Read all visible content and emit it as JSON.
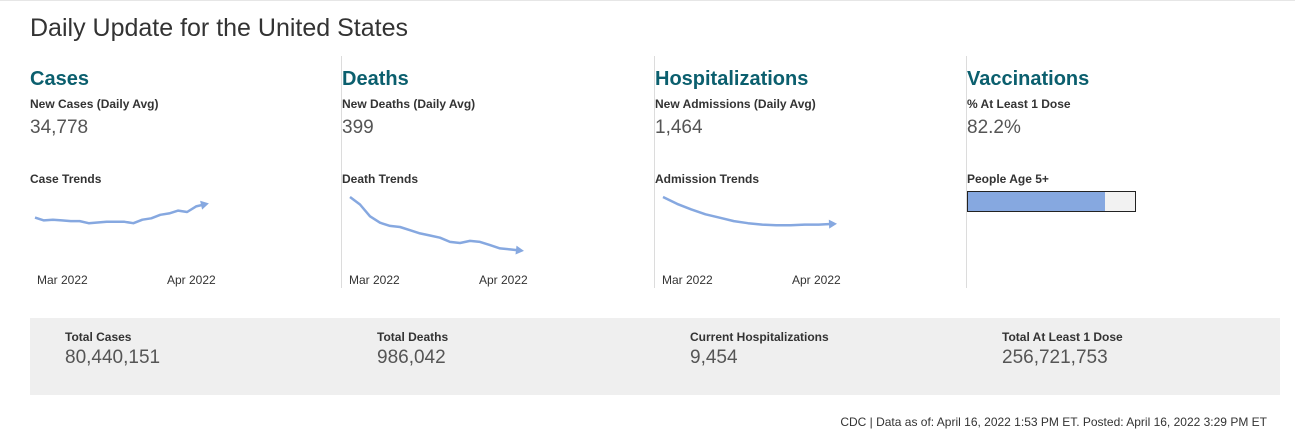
{
  "page_title": "Daily Update for the United States",
  "panels": [
    {
      "title": "Cases",
      "metric_label": "New Cases (Daily Avg)",
      "metric_value": "34,778",
      "trend_label": "Case Trends",
      "axis_start": "Mar 2022",
      "axis_end": "Apr 2022"
    },
    {
      "title": "Deaths",
      "metric_label": "New Deaths (Daily Avg)",
      "metric_value": "399",
      "trend_label": "Death Trends",
      "axis_start": "Mar 2022",
      "axis_end": "Apr 2022"
    },
    {
      "title": "Hospitalizations",
      "metric_label": "New Admissions (Daily Avg)",
      "metric_value": "1,464",
      "trend_label": "Admission Trends",
      "axis_start": "Mar 2022",
      "axis_end": "Apr 2022"
    },
    {
      "title": "Vaccinations",
      "metric_label": "% At Least 1 Dose",
      "metric_value": "82.2%",
      "bar_label": "People Age 5+",
      "bar_fill_percent": 82.2
    }
  ],
  "trends": {
    "cases": [
      0.62,
      0.58,
      0.59,
      0.58,
      0.57,
      0.57,
      0.54,
      0.55,
      0.56,
      0.56,
      0.56,
      0.54,
      0.59,
      0.61,
      0.66,
      0.68,
      0.72,
      0.7,
      0.78,
      0.81
    ],
    "deaths": [
      1.0,
      0.93,
      0.82,
      0.76,
      0.73,
      0.72,
      0.69,
      0.66,
      0.64,
      0.62,
      0.58,
      0.57,
      0.59,
      0.58,
      0.55,
      0.52,
      0.51,
      0.5
    ],
    "admissions": [
      1.0,
      0.9,
      0.82,
      0.75,
      0.7,
      0.65,
      0.62,
      0.6,
      0.59,
      0.59,
      0.6,
      0.6,
      0.61
    ]
  },
  "totals": [
    {
      "label": "Total Cases",
      "value": "80,440,151"
    },
    {
      "label": "Total Deaths",
      "value": "986,042"
    },
    {
      "label": "Current Hospitalizations",
      "value": "9,454"
    },
    {
      "label": "Total At Least 1 Dose",
      "value": "256,721,753"
    }
  ],
  "footer": "CDC | Data as of: April 16, 2022 1:53 PM ET. Posted: April 16, 2022 3:29 PM ET",
  "colors": {
    "title_teal": "#0b5f6e",
    "trend_line": "#86a8e0",
    "totals_bg": "#efefef"
  }
}
